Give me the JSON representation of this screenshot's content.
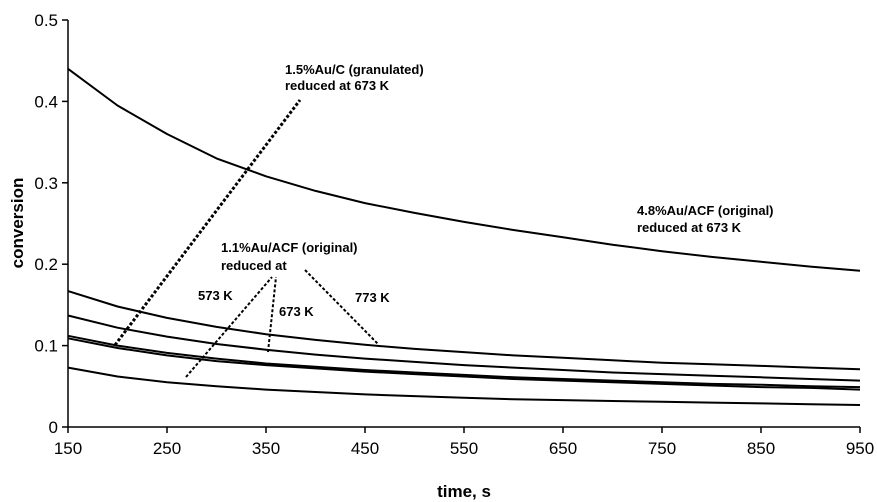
{
  "chart_data": {
    "type": "line",
    "title": "",
    "xlabel": "time, s",
    "ylabel": "conversion",
    "xlim": [
      150,
      950
    ],
    "ylim": [
      0,
      0.5
    ],
    "x_ticks": [
      "150",
      "250",
      "350",
      "450",
      "550",
      "650",
      "750",
      "850",
      "950"
    ],
    "y_ticks": [
      "0",
      "0.1",
      "0.2",
      "0.3",
      "0.4",
      "0.5"
    ],
    "grid": false,
    "line_color": "#000000",
    "series": [
      {
        "x": [
          150,
          200,
          250,
          300,
          350,
          400,
          450,
          500,
          550,
          600,
          650,
          700,
          750,
          800,
          850,
          900,
          950
        ],
        "values": [
          0.44,
          0.395,
          0.36,
          0.33,
          0.308,
          0.29,
          0.275,
          0.263,
          0.252,
          0.242,
          0.233,
          0.224,
          0.216,
          0.209,
          0.203,
          0.197,
          0.192
        ]
      },
      {
        "x": [
          150,
          200,
          250,
          300,
          350,
          400,
          450,
          500,
          550,
          600,
          650,
          700,
          750,
          800,
          850,
          900,
          950
        ],
        "values": [
          0.167,
          0.148,
          0.134,
          0.123,
          0.114,
          0.107,
          0.101,
          0.096,
          0.092,
          0.088,
          0.085,
          0.082,
          0.079,
          0.077,
          0.075,
          0.073,
          0.071
        ]
      },
      {
        "x": [
          150,
          200,
          250,
          300,
          350,
          400,
          450,
          500,
          550,
          600,
          650,
          700,
          750,
          800,
          850,
          900,
          950
        ],
        "values": [
          0.137,
          0.122,
          0.111,
          0.102,
          0.095,
          0.089,
          0.084,
          0.08,
          0.076,
          0.073,
          0.07,
          0.067,
          0.065,
          0.063,
          0.061,
          0.059,
          0.057
        ]
      },
      {
        "x": [
          150,
          200,
          250,
          300,
          350,
          400,
          450,
          500,
          550,
          600,
          650,
          700,
          750,
          800,
          850,
          900,
          950
        ],
        "values": [
          0.112,
          0.1,
          0.091,
          0.084,
          0.078,
          0.074,
          0.07,
          0.067,
          0.064,
          0.061,
          0.059,
          0.057,
          0.055,
          0.053,
          0.052,
          0.05,
          0.049
        ]
      },
      {
        "x": [
          150,
          200,
          250,
          300,
          350,
          400,
          450,
          500,
          550,
          600,
          650,
          700,
          750,
          800,
          850,
          900,
          950
        ],
        "values": [
          0.109,
          0.097,
          0.088,
          0.081,
          0.076,
          0.072,
          0.068,
          0.065,
          0.062,
          0.059,
          0.057,
          0.055,
          0.053,
          0.051,
          0.049,
          0.048,
          0.046
        ]
      },
      {
        "x": [
          150,
          200,
          250,
          300,
          350,
          400,
          450,
          500,
          550,
          600,
          650,
          700,
          750,
          800,
          850,
          900,
          950
        ],
        "values": [
          0.073,
          0.062,
          0.055,
          0.05,
          0.046,
          0.043,
          0.04,
          0.038,
          0.036,
          0.034,
          0.033,
          0.032,
          0.031,
          0.03,
          0.029,
          0.028,
          0.027
        ]
      }
    ],
    "annotations": {
      "granulated": {
        "line1": "1.5%Au/C (granulated)",
        "line2": "reduced at 673 K"
      },
      "acf48": {
        "line1": "4.8%Au/ACF (original)",
        "line2": "reduced at 673 K"
      },
      "acf11": {
        "line1": "1.1%Au/ACF (original)",
        "line2": "reduced at"
      },
      "temps": [
        "573 K",
        "673 K",
        "773 K"
      ]
    }
  }
}
